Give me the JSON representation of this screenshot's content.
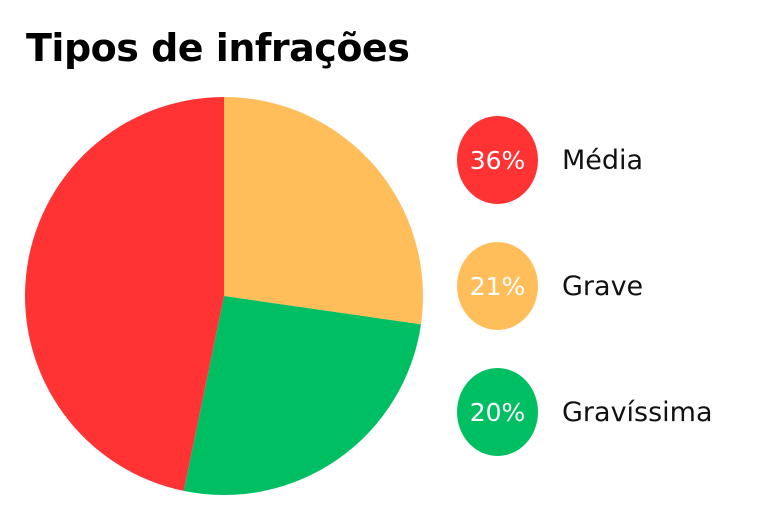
{
  "chart_data": {
    "type": "pie",
    "title": "Tipos de infrações",
    "slices": [
      {
        "label": "Média",
        "value": 36,
        "display": "36%",
        "color": "#FF3333"
      },
      {
        "label": "Grave",
        "value": 21,
        "display": "21%",
        "color": "#FFBE5A"
      },
      {
        "label": "Gravíssima",
        "value": 20,
        "display": "20%",
        "color": "#00BF63"
      }
    ],
    "legend_position": "right"
  }
}
